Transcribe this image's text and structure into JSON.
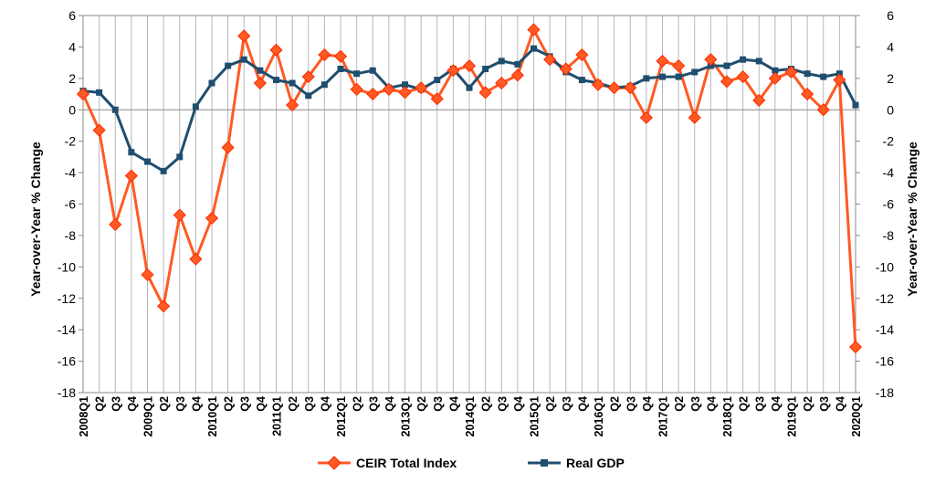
{
  "chart_data": {
    "type": "line",
    "title": "",
    "ylabel_left": "Year-over-Year % Change",
    "ylabel_right": "Year-over-Year % Change",
    "ylim": [
      -18,
      6
    ],
    "yticks": [
      6,
      4,
      2,
      0,
      -2,
      -4,
      -6,
      -8,
      -10,
      -12,
      -14,
      -16,
      -18
    ],
    "legend_position": "bottom",
    "grid": "vertical",
    "categories": [
      "2008Q1",
      "Q2",
      "Q3",
      "Q4",
      "2009Q1",
      "Q2",
      "Q3",
      "Q4",
      "2010Q1",
      "Q2",
      "Q3",
      "Q4",
      "2011Q1",
      "Q2",
      "Q3",
      "Q4",
      "2012Q1",
      "Q2",
      "Q3",
      "Q4",
      "2013Q1",
      "Q2",
      "Q3",
      "Q4",
      "2014Q1",
      "Q2",
      "Q3",
      "Q4",
      "2015Q1",
      "Q2",
      "Q3",
      "Q4",
      "2016Q1",
      "Q2",
      "Q3",
      "Q4",
      "2017Q1",
      "Q2",
      "Q3",
      "Q4",
      "2018Q1",
      "Q2",
      "Q3",
      "Q4",
      "2019Q1",
      "Q2",
      "Q3",
      "Q4",
      "2020Q1"
    ],
    "series": [
      {
        "name": "CEIR Total Index",
        "color": "#ff5a23",
        "marker": "diamond",
        "values": [
          1.0,
          -1.3,
          -7.3,
          -4.2,
          -10.5,
          -12.5,
          -6.7,
          -9.5,
          -6.9,
          -2.4,
          4.7,
          1.7,
          3.8,
          0.3,
          2.1,
          3.5,
          3.4,
          1.3,
          1.0,
          1.3,
          1.1,
          1.4,
          0.7,
          2.5,
          2.8,
          1.1,
          1.7,
          2.2,
          5.1,
          3.2,
          2.6,
          3.5,
          1.6,
          1.4,
          1.4,
          -0.5,
          3.1,
          2.8,
          -0.5,
          3.2,
          1.8,
          2.1,
          0.6,
          2.0,
          2.4,
          1.0,
          0.0,
          1.9,
          -15.1
        ]
      },
      {
        "name": "Real GDP",
        "color": "#1f4e6e",
        "marker": "square",
        "values": [
          1.2,
          1.1,
          0.0,
          -2.7,
          -3.3,
          -3.9,
          -3.0,
          0.2,
          1.7,
          2.8,
          3.2,
          2.5,
          1.9,
          1.7,
          0.9,
          1.6,
          2.6,
          2.3,
          2.5,
          1.4,
          1.6,
          1.3,
          1.9,
          2.6,
          1.4,
          2.6,
          3.1,
          2.9,
          3.9,
          3.4,
          2.4,
          1.9,
          1.7,
          1.4,
          1.5,
          2.0,
          2.1,
          2.1,
          2.4,
          2.8,
          2.8,
          3.2,
          3.1,
          2.5,
          2.6,
          2.3,
          2.1,
          2.3,
          0.3
        ]
      }
    ]
  }
}
